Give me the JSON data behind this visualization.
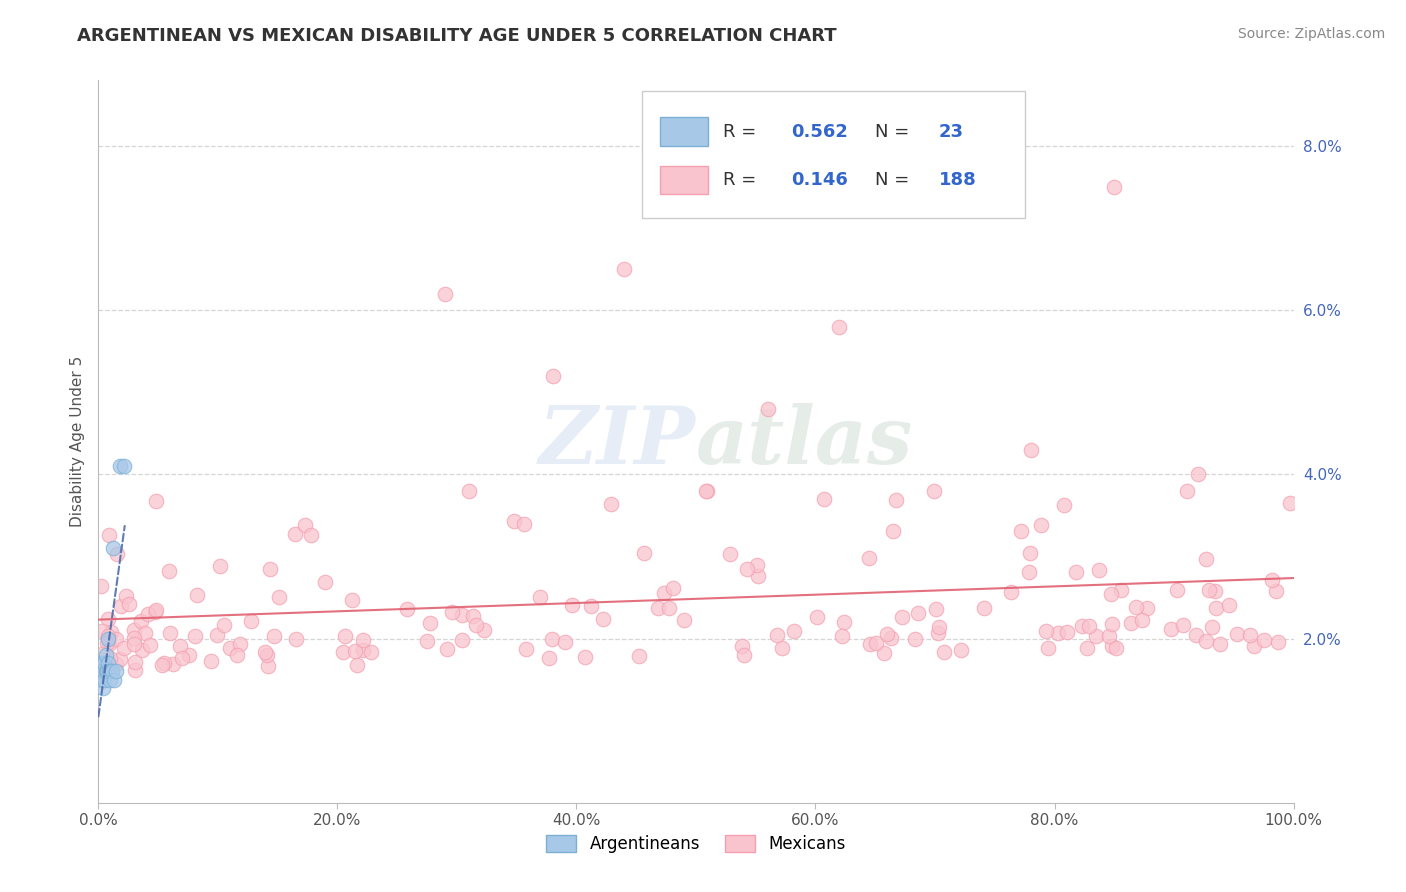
{
  "title": "ARGENTINEAN VS MEXICAN DISABILITY AGE UNDER 5 CORRELATION CHART",
  "source": "Source: ZipAtlas.com",
  "ylabel": "Disability Age Under 5",
  "xlim": [
    0,
    1.0
  ],
  "ylim": [
    0,
    0.088
  ],
  "xticklabels": [
    "0.0%",
    "20.0%",
    "40.0%",
    "60.0%",
    "80.0%",
    "100.0%"
  ],
  "yticklabels": [
    "",
    "2.0%",
    "4.0%",
    "6.0%",
    "8.0%"
  ],
  "blue_color": "#7BAFD4",
  "pink_color": "#F4A0B0",
  "blue_fill": "#A8C8E8",
  "pink_fill": "#F9C4CE",
  "blue_line_color": "#4466AA",
  "pink_line_color": "#E06070",
  "watermark": "ZIPatlas",
  "background_color": "#FFFFFF",
  "grid_color": "#CCCCCC",
  "argentineans_label": "Argentineans",
  "mexicans_label": "Mexicans",
  "legend_label1": "R = 0.562   N =  23",
  "legend_label2": "R = 0.146   N = 188",
  "ytick_color": "#4466BB",
  "text_color": "#333333"
}
